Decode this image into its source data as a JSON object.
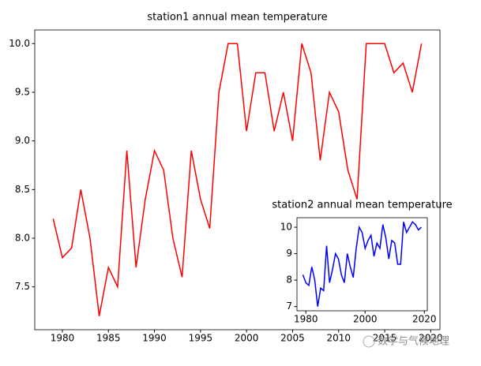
{
  "chart_data": [
    {
      "type": "line",
      "title": "station1 annual mean temperature",
      "x": [
        1979,
        1980,
        1981,
        1982,
        1983,
        1984,
        1985,
        1986,
        1987,
        1988,
        1989,
        1990,
        1991,
        1992,
        1993,
        1994,
        1995,
        1996,
        1997,
        1998,
        1999,
        2000,
        2001,
        2002,
        2003,
        2004,
        2005,
        2006,
        2007,
        2008,
        2009,
        2010,
        2011,
        2012,
        2013,
        2014,
        2015,
        2016,
        2017,
        2018,
        2019
      ],
      "series": [
        {
          "color": "#ff0000",
          "values": [
            8.2,
            7.8,
            7.9,
            8.5,
            8.0,
            7.2,
            7.7,
            7.5,
            8.9,
            7.7,
            8.4,
            8.9,
            8.7,
            8.0,
            7.6,
            8.9,
            8.4,
            8.1,
            9.5,
            10.0,
            10.0,
            9.1,
            9.7,
            9.7,
            9.1,
            9.5,
            9.0,
            10.0,
            9.7,
            8.8,
            9.5,
            9.3,
            8.7,
            8.4,
            10.0,
            10.0,
            10.0,
            9.7,
            9.8,
            9.5,
            10.0
          ]
        }
      ],
      "xlim": [
        1977,
        2021
      ],
      "xticks": [
        1980,
        1985,
        1990,
        1995,
        2000,
        2005,
        2010,
        2015,
        2020
      ],
      "ylim": [
        7.06,
        10.14
      ],
      "yticks": [
        7.5,
        {
          "value": 8,
          "label": "8.0"
        },
        8.5,
        {
          "value": 9,
          "label": "9.0"
        },
        9.5,
        {
          "value": 10,
          "label": "10.0"
        }
      ]
    },
    {
      "type": "line",
      "title": "station2 annual mean temperature",
      "x": [
        1979,
        1980,
        1981,
        1982,
        1983,
        1984,
        1985,
        1986,
        1987,
        1988,
        1989,
        1990,
        1991,
        1992,
        1993,
        1994,
        1995,
        1996,
        1997,
        1998,
        1999,
        2000,
        2001,
        2002,
        2003,
        2004,
        2005,
        2006,
        2007,
        2008,
        2009,
        2010,
        2011,
        2012,
        2013,
        2014,
        2015,
        2016,
        2017,
        2018,
        2019
      ],
      "series": [
        {
          "color": "#0000ff",
          "values": [
            8.2,
            7.9,
            7.8,
            8.5,
            8.0,
            7.0,
            7.7,
            7.6,
            9.3,
            7.9,
            8.4,
            9.0,
            8.8,
            8.2,
            7.9,
            9.0,
            8.5,
            8.1,
            9.2,
            10.0,
            9.8,
            9.2,
            9.5,
            9.7,
            8.9,
            9.4,
            9.2,
            10.1,
            9.6,
            8.8,
            9.5,
            9.4,
            8.6,
            8.6,
            10.2,
            9.8,
            10.0,
            10.2,
            10.1,
            9.9,
            10.0
          ]
        }
      ],
      "xlim": [
        1977,
        2021
      ],
      "xticks": [
        1980,
        2000,
        2020
      ],
      "ylim": [
        6.84,
        10.36
      ],
      "yticks": [
        7,
        8,
        9,
        10
      ]
    }
  ],
  "watermark": "数学与气候地理"
}
